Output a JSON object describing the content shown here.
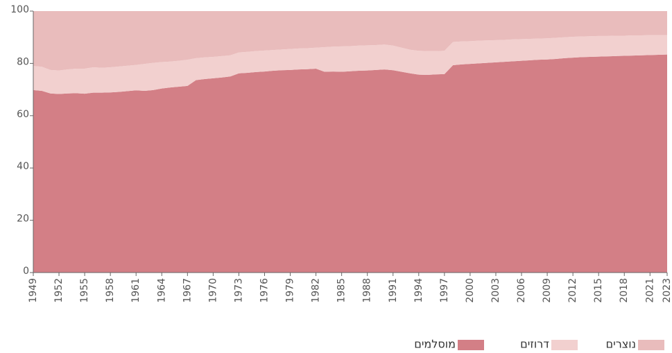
{
  "chart_data": {
    "type": "stacked_area",
    "x": [
      1949,
      1950,
      1951,
      1952,
      1953,
      1954,
      1955,
      1956,
      1957,
      1958,
      1959,
      1960,
      1961,
      1962,
      1963,
      1964,
      1965,
      1966,
      1967,
      1968,
      1969,
      1970,
      1971,
      1972,
      1973,
      1974,
      1975,
      1976,
      1977,
      1978,
      1979,
      1980,
      1981,
      1982,
      1983,
      1984,
      1985,
      1986,
      1987,
      1988,
      1989,
      1990,
      1991,
      1992,
      1993,
      1994,
      1995,
      1996,
      1997,
      1998,
      1999,
      2000,
      2001,
      2002,
      2003,
      2004,
      2005,
      2006,
      2007,
      2008,
      2009,
      2010,
      2011,
      2012,
      2013,
      2014,
      2015,
      2016,
      2017,
      2018,
      2019,
      2020,
      2021,
      2022,
      2023
    ],
    "xlim": [
      1949,
      2023
    ],
    "xticks": [
      1949,
      1952,
      1955,
      1958,
      1961,
      1964,
      1967,
      1970,
      1973,
      1976,
      1979,
      1982,
      1985,
      1988,
      1991,
      1994,
      1997,
      2000,
      2003,
      2006,
      2009,
      2012,
      2015,
      2018,
      2021,
      2023
    ],
    "ylim": [
      0,
      100
    ],
    "yticks": [
      0,
      20,
      40,
      60,
      80,
      100
    ],
    "series": [
      {
        "name": "מוסלמים",
        "color": "#d37f86",
        "values": [
          69.8,
          69.5,
          68.5,
          68.3,
          68.5,
          68.6,
          68.4,
          68.8,
          68.8,
          68.9,
          69.1,
          69.4,
          69.7,
          69.5,
          69.8,
          70.4,
          70.8,
          71.1,
          71.4,
          73.6,
          74.0,
          74.3,
          74.6,
          75.0,
          76.2,
          76.4,
          76.7,
          76.9,
          77.2,
          77.4,
          77.5,
          77.7,
          77.8,
          78.0,
          76.8,
          76.9,
          76.8,
          77.0,
          77.2,
          77.3,
          77.5,
          77.7,
          77.4,
          76.8,
          76.2,
          75.7,
          75.6,
          75.8,
          75.9,
          79.3,
          79.6,
          79.8,
          80.0,
          80.2,
          80.4,
          80.6,
          80.8,
          81.0,
          81.2,
          81.4,
          81.5,
          81.7,
          82.0,
          82.2,
          82.4,
          82.5,
          82.6,
          82.7,
          82.8,
          82.9,
          83.0,
          83.1,
          83.2,
          83.3,
          83.4
        ]
      },
      {
        "name": "דרוזים",
        "color": "#f2d0cf",
        "values": [
          9.2,
          9.2,
          9.0,
          9.0,
          9.2,
          9.4,
          9.6,
          9.7,
          9.5,
          9.6,
          9.7,
          9.7,
          9.7,
          10.3,
          10.4,
          10.1,
          9.9,
          9.9,
          10.0,
          8.4,
          8.3,
          8.2,
          8.2,
          8.1,
          8.0,
          8.0,
          8.0,
          8.0,
          7.9,
          7.9,
          8.0,
          8.0,
          8.0,
          8.0,
          9.4,
          9.5,
          9.7,
          9.6,
          9.6,
          9.6,
          9.5,
          9.5,
          9.4,
          9.2,
          9.0,
          9.1,
          9.1,
          8.9,
          8.9,
          8.9,
          8.8,
          8.7,
          8.7,
          8.6,
          8.5,
          8.4,
          8.4,
          8.3,
          8.2,
          8.1,
          8.1,
          8.1,
          8.0,
          8.0,
          7.9,
          7.9,
          7.9,
          7.8,
          7.8,
          7.7,
          7.7,
          7.6,
          7.6,
          7.5,
          7.4
        ]
      },
      {
        "name": "נוצרים",
        "color": "#e9bcbc",
        "values": [
          21.0,
          21.3,
          22.5,
          22.7,
          22.3,
          22.0,
          22.0,
          21.5,
          21.7,
          21.5,
          21.2,
          20.9,
          20.6,
          20.2,
          19.8,
          19.5,
          19.3,
          19.0,
          18.6,
          18.0,
          17.7,
          17.5,
          17.2,
          16.9,
          15.8,
          15.6,
          15.3,
          15.1,
          14.9,
          14.7,
          14.5,
          14.3,
          14.2,
          14.0,
          13.8,
          13.6,
          13.5,
          13.4,
          13.2,
          13.1,
          13.0,
          12.8,
          13.2,
          14.0,
          14.8,
          15.2,
          15.3,
          15.3,
          15.2,
          11.8,
          11.6,
          11.5,
          11.3,
          11.2,
          11.1,
          11.0,
          10.8,
          10.7,
          10.6,
          10.5,
          10.4,
          10.2,
          10.0,
          9.8,
          9.7,
          9.6,
          9.5,
          9.5,
          9.4,
          9.4,
          9.3,
          9.3,
          9.2,
          9.2,
          9.2
        ]
      }
    ]
  }
}
